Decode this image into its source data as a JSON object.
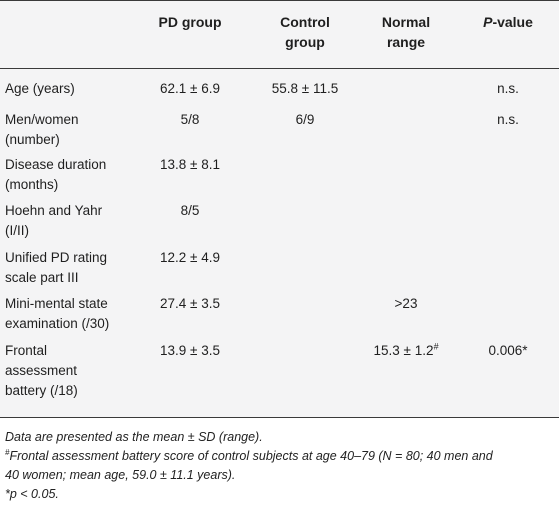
{
  "table": {
    "headers": {
      "col1": "",
      "pd": [
        "PD group"
      ],
      "control": [
        "Control",
        "group"
      ],
      "normal": [
        "Normal",
        "range"
      ],
      "p_letter": "P",
      "p_rest": "-value"
    },
    "rows": [
      {
        "label": [
          "Age (years)"
        ],
        "pd": "62.1 ± 6.9",
        "control": "55.8 ± 11.5",
        "normal": "",
        "normal_sup": "",
        "p": "n.s."
      },
      {
        "label": [
          "Men/women",
          "(number)"
        ],
        "pd": "5/8",
        "control": "6/9",
        "normal": "",
        "normal_sup": "",
        "p": "n.s."
      },
      {
        "label": [
          "Disease duration",
          "(months)"
        ],
        "pd": "13.8 ± 8.1",
        "control": "",
        "normal": "",
        "normal_sup": "",
        "p": ""
      },
      {
        "label": [
          "Hoehn and Yahr",
          "(I/II)"
        ],
        "pd": "8/5",
        "control": "",
        "normal": "",
        "normal_sup": "",
        "p": ""
      },
      {
        "label": [
          "Unified PD rating",
          "scale part III"
        ],
        "pd": "12.2 ± 4.9",
        "control": "",
        "normal": "",
        "normal_sup": "",
        "p": ""
      },
      {
        "label": [
          "Mini-mental state",
          "examination (/30)"
        ],
        "pd": "27.4 ± 3.5",
        "control": "",
        "normal": ">23",
        "normal_sup": "",
        "p": ""
      },
      {
        "label": [
          "Frontal",
          "assessment",
          "battery (/18)"
        ],
        "pd": "13.9 ± 3.5",
        "control": "",
        "normal": "15.3 ± 1.2",
        "normal_sup": "#",
        "p": "0.006*"
      }
    ]
  },
  "notes": {
    "line1": "Data are presented as the mean ± SD (range).",
    "line2_sup": "#",
    "line2a": "Frontal assessment battery score of control subjects at age 40–79 (N = 80; 40 men and",
    "line2b": "40 women; mean age, 59.0 ± 11.1 years).",
    "line3": "*p < 0.05."
  }
}
